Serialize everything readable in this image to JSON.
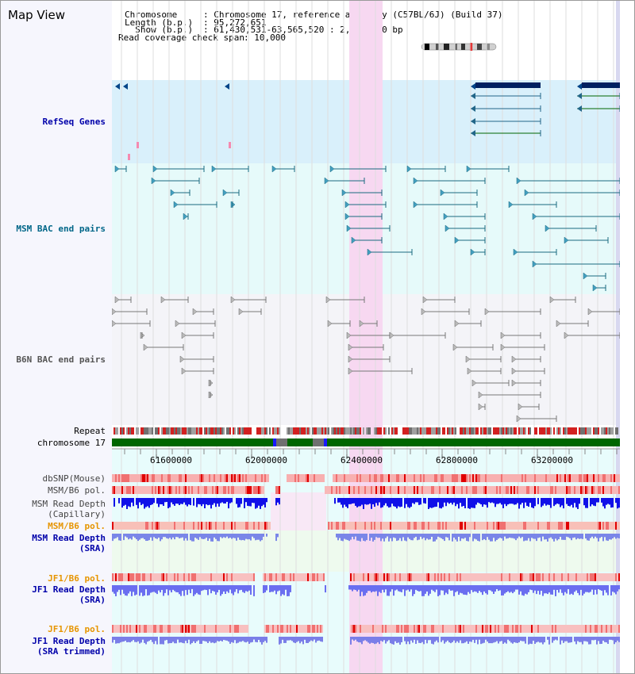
{
  "title": "Map View",
  "header": {
    "chromosome_label": "Chromosome    ",
    "chromosome_value": ": Chromosome 17, reference assembly (C57BL/6J) (Build 37)",
    "length_label": "Length (b.p.)",
    "length_value": ": 95,272,651",
    "show_label": "  Show (b.p.)",
    "show_value": ": 61,430,531-63,565,520 : 2,134,990 bp",
    "coverage_label": "Read coverage check span",
    "coverage_value": ": 10,000"
  },
  "tracks": {
    "refseq": "RefSeq Genes",
    "msm_bac": "MSM BAC end pairs",
    "b6n_bac": "B6N BAC end pairs",
    "repeat": "Repeat",
    "chromosome": "chromosome 17",
    "dbsnp": "dbSNP(Mouse)",
    "msm_b6_pol": "MSM/B6 pol.",
    "msm_read_depth_cap_1": "MSM Read Depth",
    "msm_read_depth_cap_2": "(Capillary)",
    "msm_b6_pol_2": "MSM/B6 pol.",
    "msm_read_depth_sra_1": "MSM Read Depth",
    "msm_read_depth_sra_2": "(SRA)",
    "jf1_b6_pol": "JF1/B6 pol.",
    "jf1_read_depth_1": "JF1 Read Depth",
    "jf1_read_depth_2": "(SRA)",
    "jf1_b6_pol_2": "JF1/B6 pol.",
    "jf1_trim_1": "JF1 Read Depth",
    "jf1_trim_2": "(SRA trimmed)"
  },
  "axis": {
    "ticks": [
      "61600000",
      "62000000",
      "62400000",
      "62800000",
      "63200000"
    ]
  },
  "colors": {
    "refseq_label": "#0000aa",
    "msm_label": "#006688",
    "b6n_label": "#555555",
    "pol_label": "#e69500",
    "sra_label": "#0000aa",
    "highlight": "#f7d8f1"
  }
}
